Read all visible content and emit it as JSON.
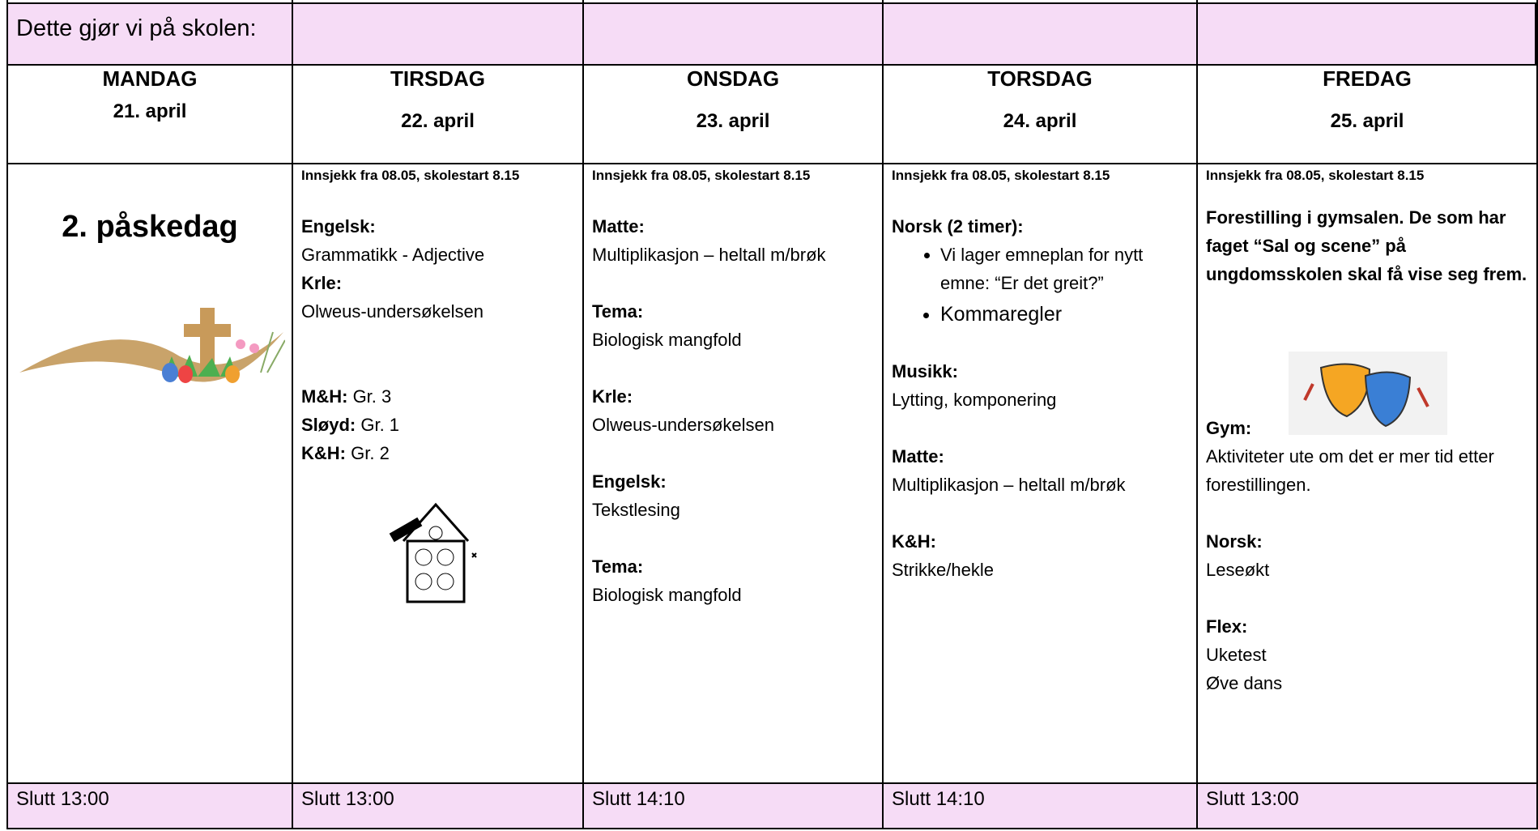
{
  "title": "Dette gjør vi på skolen:",
  "days": [
    {
      "day": "MANDAG",
      "date": "21. april",
      "holiday": "2. påskedag",
      "end": "Slutt 13:00"
    },
    {
      "day": "TIRSDAG",
      "date": "22. april",
      "checkin": "Innsjekk fra 08.05, skolestart 8.15",
      "blocks": [
        {
          "heading": "Engelsk:",
          "lines": [
            "Grammatikk - Adjective"
          ]
        },
        {
          "heading": "Krle:",
          "lines": [
            "Olweus-undersøkelsen"
          ]
        }
      ],
      "groups": [
        {
          "label": "M&H:",
          "text": "Gr. 3"
        },
        {
          "label": "Sløyd:",
          "text": "Gr. 1"
        },
        {
          "label": "K&H:",
          "text": "Gr. 2"
        }
      ],
      "end": "Slutt 13:00"
    },
    {
      "day": "ONSDAG",
      "date": "23. april",
      "checkin": "Innsjekk fra 08.05, skolestart 8.15",
      "blocks": [
        {
          "heading": "Matte:",
          "lines": [
            "Multiplikasjon – heltall m/brøk"
          ]
        },
        {
          "heading": "Tema:",
          "lines": [
            "Biologisk mangfold"
          ]
        },
        {
          "heading": "Krle:",
          "lines": [
            "Olweus-undersøkelsen"
          ]
        },
        {
          "heading": "Engelsk:",
          "lines": [
            "Tekstlesing"
          ]
        },
        {
          "heading": "Tema:",
          "lines": [
            "Biologisk mangfold"
          ]
        }
      ],
      "end": "Slutt 14:10"
    },
    {
      "day": "TORSDAG",
      "date": "24. april",
      "checkin": "Innsjekk fra 08.05, skolestart 8.15",
      "blocks": [
        {
          "heading": "Norsk (2 timer):",
          "bullets": [
            "Vi lager emneplan for nytt emne: “Er det greit?”",
            "Kommaregler"
          ]
        },
        {
          "heading": "Musikk:",
          "lines": [
            "Lytting, komponering"
          ]
        },
        {
          "heading": "Matte:",
          "lines": [
            "Multiplikasjon – heltall m/brøk"
          ]
        },
        {
          "heading": "K&H:",
          "lines": [
            "Strikke/hekle"
          ]
        }
      ],
      "end": "Slutt 14:10"
    },
    {
      "day": "FREDAG",
      "date": "25. april",
      "checkin": "Innsjekk fra 08.05, skolestart 8.15",
      "intro": "Forestilling i gymsalen. De som har faget “Sal og scene” på ungdomsskolen skal få vise seg frem.",
      "blocks": [
        {
          "heading": "Gym:",
          "lines": [
            "Aktiviteter ute om det er mer tid etter forestillingen."
          ]
        },
        {
          "heading": "Norsk:",
          "lines": [
            "Leseøkt"
          ]
        },
        {
          "heading": "Flex:",
          "lines": [
            "Uketest",
            "Øve dans"
          ]
        }
      ],
      "end": "Slutt 13:00"
    }
  ]
}
